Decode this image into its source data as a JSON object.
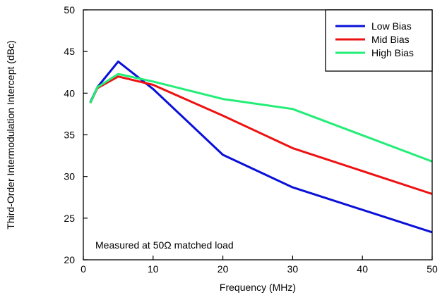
{
  "chart_data": {
    "type": "line",
    "xlabel": "Frequency (MHz)",
    "ylabel": "Third-Order Intermodulation Intercept (dBc)",
    "xlim": [
      0,
      50
    ],
    "ylim": [
      20,
      50
    ],
    "xticks": [
      0,
      10,
      20,
      30,
      40,
      50
    ],
    "yticks": [
      20,
      25,
      30,
      35,
      40,
      45,
      50
    ],
    "grid": false,
    "legend_position": "top-right",
    "annotation": "Measured at 50Ω matched load",
    "series": [
      {
        "name": "Low Bias",
        "color": "#0a10d8",
        "x": [
          1,
          2,
          5,
          10,
          20,
          30,
          50
        ],
        "y": [
          38.9,
          40.7,
          43.8,
          40.5,
          32.6,
          28.7,
          23.3
        ]
      },
      {
        "name": "Mid Bias",
        "color": "#ee1111",
        "x": [
          1,
          2,
          5,
          10,
          20,
          30,
          50
        ],
        "y": [
          38.8,
          40.6,
          42.0,
          41.0,
          37.3,
          33.4,
          27.9
        ]
      },
      {
        "name": "High Bias",
        "color": "#22ee77",
        "x": [
          1,
          2,
          5,
          10,
          20,
          30,
          50
        ],
        "y": [
          38.8,
          40.7,
          42.3,
          41.4,
          39.3,
          38.1,
          31.8
        ]
      }
    ]
  }
}
